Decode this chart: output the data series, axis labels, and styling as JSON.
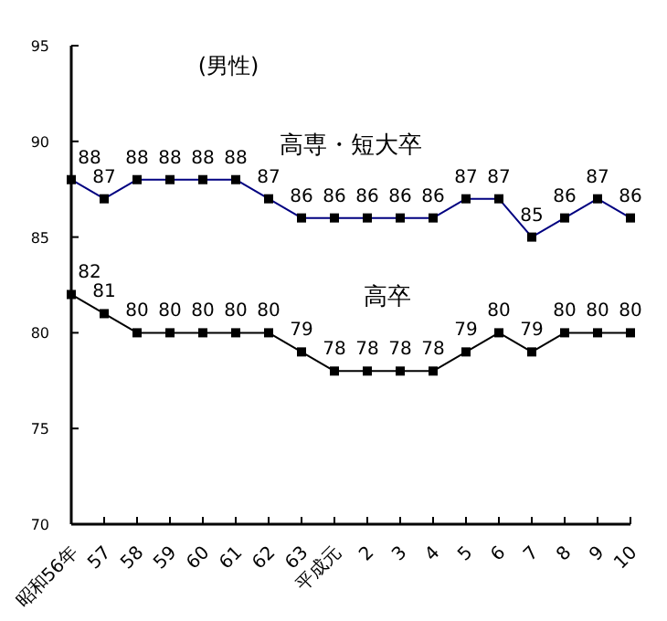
{
  "chart_data": {
    "type": "line",
    "title": "(男性)",
    "categories": [
      "昭和56年",
      "57",
      "58",
      "59",
      "60",
      "61",
      "62",
      "63",
      "平成元",
      "2",
      "3",
      "4",
      "5",
      "6",
      "7",
      "8",
      "9",
      "10"
    ],
    "series": [
      {
        "name": "高専・短大卒",
        "color": "#000080",
        "values": [
          88,
          87,
          88,
          88,
          88,
          88,
          87,
          86,
          86,
          86,
          86,
          86,
          87,
          87,
          85,
          86,
          87,
          86
        ]
      },
      {
        "name": "高卒",
        "color": "#000000",
        "values": [
          82,
          81,
          80,
          80,
          80,
          80,
          80,
          79,
          78,
          78,
          78,
          78,
          79,
          80,
          79,
          80,
          80,
          80
        ]
      }
    ],
    "ylim": [
      70,
      95
    ],
    "yticks": [
      70,
      75,
      80,
      85,
      90,
      95
    ],
    "marker": "square",
    "data_labels": true,
    "grid": false
  }
}
